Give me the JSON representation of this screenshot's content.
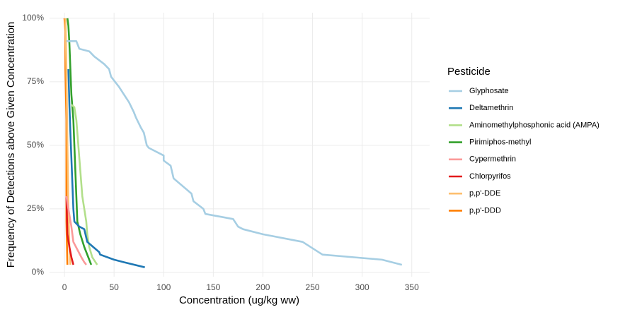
{
  "chart_data": {
    "type": "line",
    "x_label": "Concentration (ug/kg ww)",
    "y_label": "Frequency of Detections above Given Concentration",
    "legend_title": "Pesticide",
    "legend": "right",
    "grid": true,
    "xlim": [
      -15,
      368
    ],
    "ylim": [
      -1.7,
      102.2
    ],
    "xticks": [
      0,
      50,
      100,
      150,
      200,
      250,
      300,
      350
    ],
    "yticks": [
      {
        "value": 0,
        "label": "0%"
      },
      {
        "value": 25,
        "label": "25%"
      },
      {
        "value": 50,
        "label": "50%"
      },
      {
        "value": 75,
        "label": "75%"
      },
      {
        "value": 100,
        "label": "100%"
      }
    ],
    "series": [
      {
        "name": "Glyphosate",
        "color": "#a6cee3",
        "x": [
          2,
          12,
          15,
          25,
          30,
          40,
          45,
          47,
          55,
          60,
          65,
          70,
          72,
          77,
          80,
          83,
          85,
          100,
          100,
          107,
          110,
          128,
          130,
          140,
          142,
          170,
          175,
          180,
          200,
          240,
          260,
          320,
          340
        ],
        "values": [
          91,
          91,
          88,
          87,
          85,
          82,
          80,
          77,
          73,
          70,
          67,
          63,
          61,
          57,
          55,
          50,
          49,
          46,
          44,
          42,
          37,
          31,
          28,
          25,
          23,
          21,
          18,
          17,
          15,
          12,
          7,
          5,
          3
        ]
      },
      {
        "name": "Deltamethrin",
        "color": "#1f78b4",
        "x": [
          4,
          5,
          6,
          7,
          8,
          9,
          10,
          15,
          20,
          23,
          35,
          36,
          50,
          60,
          81
        ],
        "values": [
          80,
          66,
          55,
          45,
          35,
          25,
          20,
          18,
          17,
          12,
          8,
          7,
          5,
          4,
          2
        ]
      },
      {
        "name": "Aminomethylphosphonic acid (AMPA)",
        "color": "#b2df8a",
        "x": [
          7,
          10,
          12,
          14,
          16,
          18,
          20,
          22,
          23,
          25,
          28,
          33
        ],
        "values": [
          66,
          65,
          60,
          50,
          40,
          30,
          25,
          20,
          15,
          10,
          6,
          3
        ]
      },
      {
        "name": "Pirimiphos-methyl",
        "color": "#33a02c",
        "x": [
          3,
          4,
          5,
          6,
          7,
          9,
          10,
          11,
          12,
          13,
          16,
          20,
          25,
          27
        ],
        "values": [
          100,
          97,
          90,
          80,
          70,
          60,
          50,
          40,
          30,
          20,
          15,
          10,
          5,
          3
        ]
      },
      {
        "name": "Cypermethrin",
        "color": "#fb9a99",
        "x": [
          2,
          4,
          7,
          9,
          13,
          17,
          20,
          22
        ],
        "values": [
          30,
          25,
          18,
          12,
          9,
          6,
          4,
          3
        ]
      },
      {
        "name": "Chlorpyrifos",
        "color": "#e31a1c",
        "x": [
          2,
          3,
          5,
          7,
          9
        ],
        "values": [
          30,
          15,
          10,
          6,
          3
        ]
      },
      {
        "name": "p,p'-DDE",
        "color": "#fdbf6f",
        "x": [
          1,
          2,
          3,
          4,
          5,
          6
        ],
        "values": [
          100,
          80,
          50,
          25,
          10,
          3
        ]
      },
      {
        "name": "p,p'-DDD",
        "color": "#ff7f00",
        "x": [
          0,
          1,
          1,
          2,
          2,
          2,
          3
        ],
        "values": [
          100,
          95,
          80,
          60,
          40,
          20,
          3
        ]
      }
    ]
  }
}
